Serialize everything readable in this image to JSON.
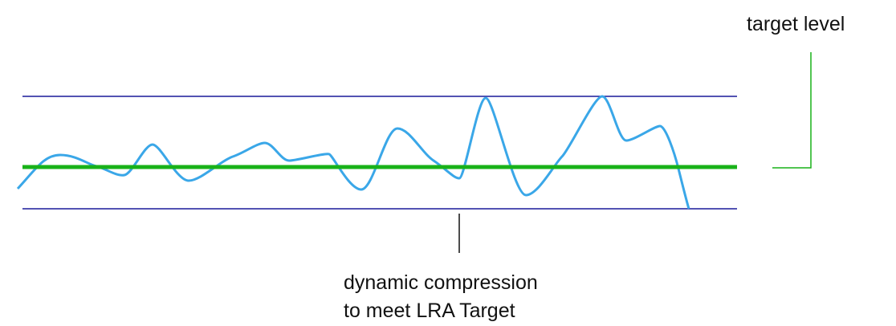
{
  "labels": {
    "target": "target level",
    "compression": [
      "dynamic compression",
      "to meet LRA Target"
    ]
  }
}
